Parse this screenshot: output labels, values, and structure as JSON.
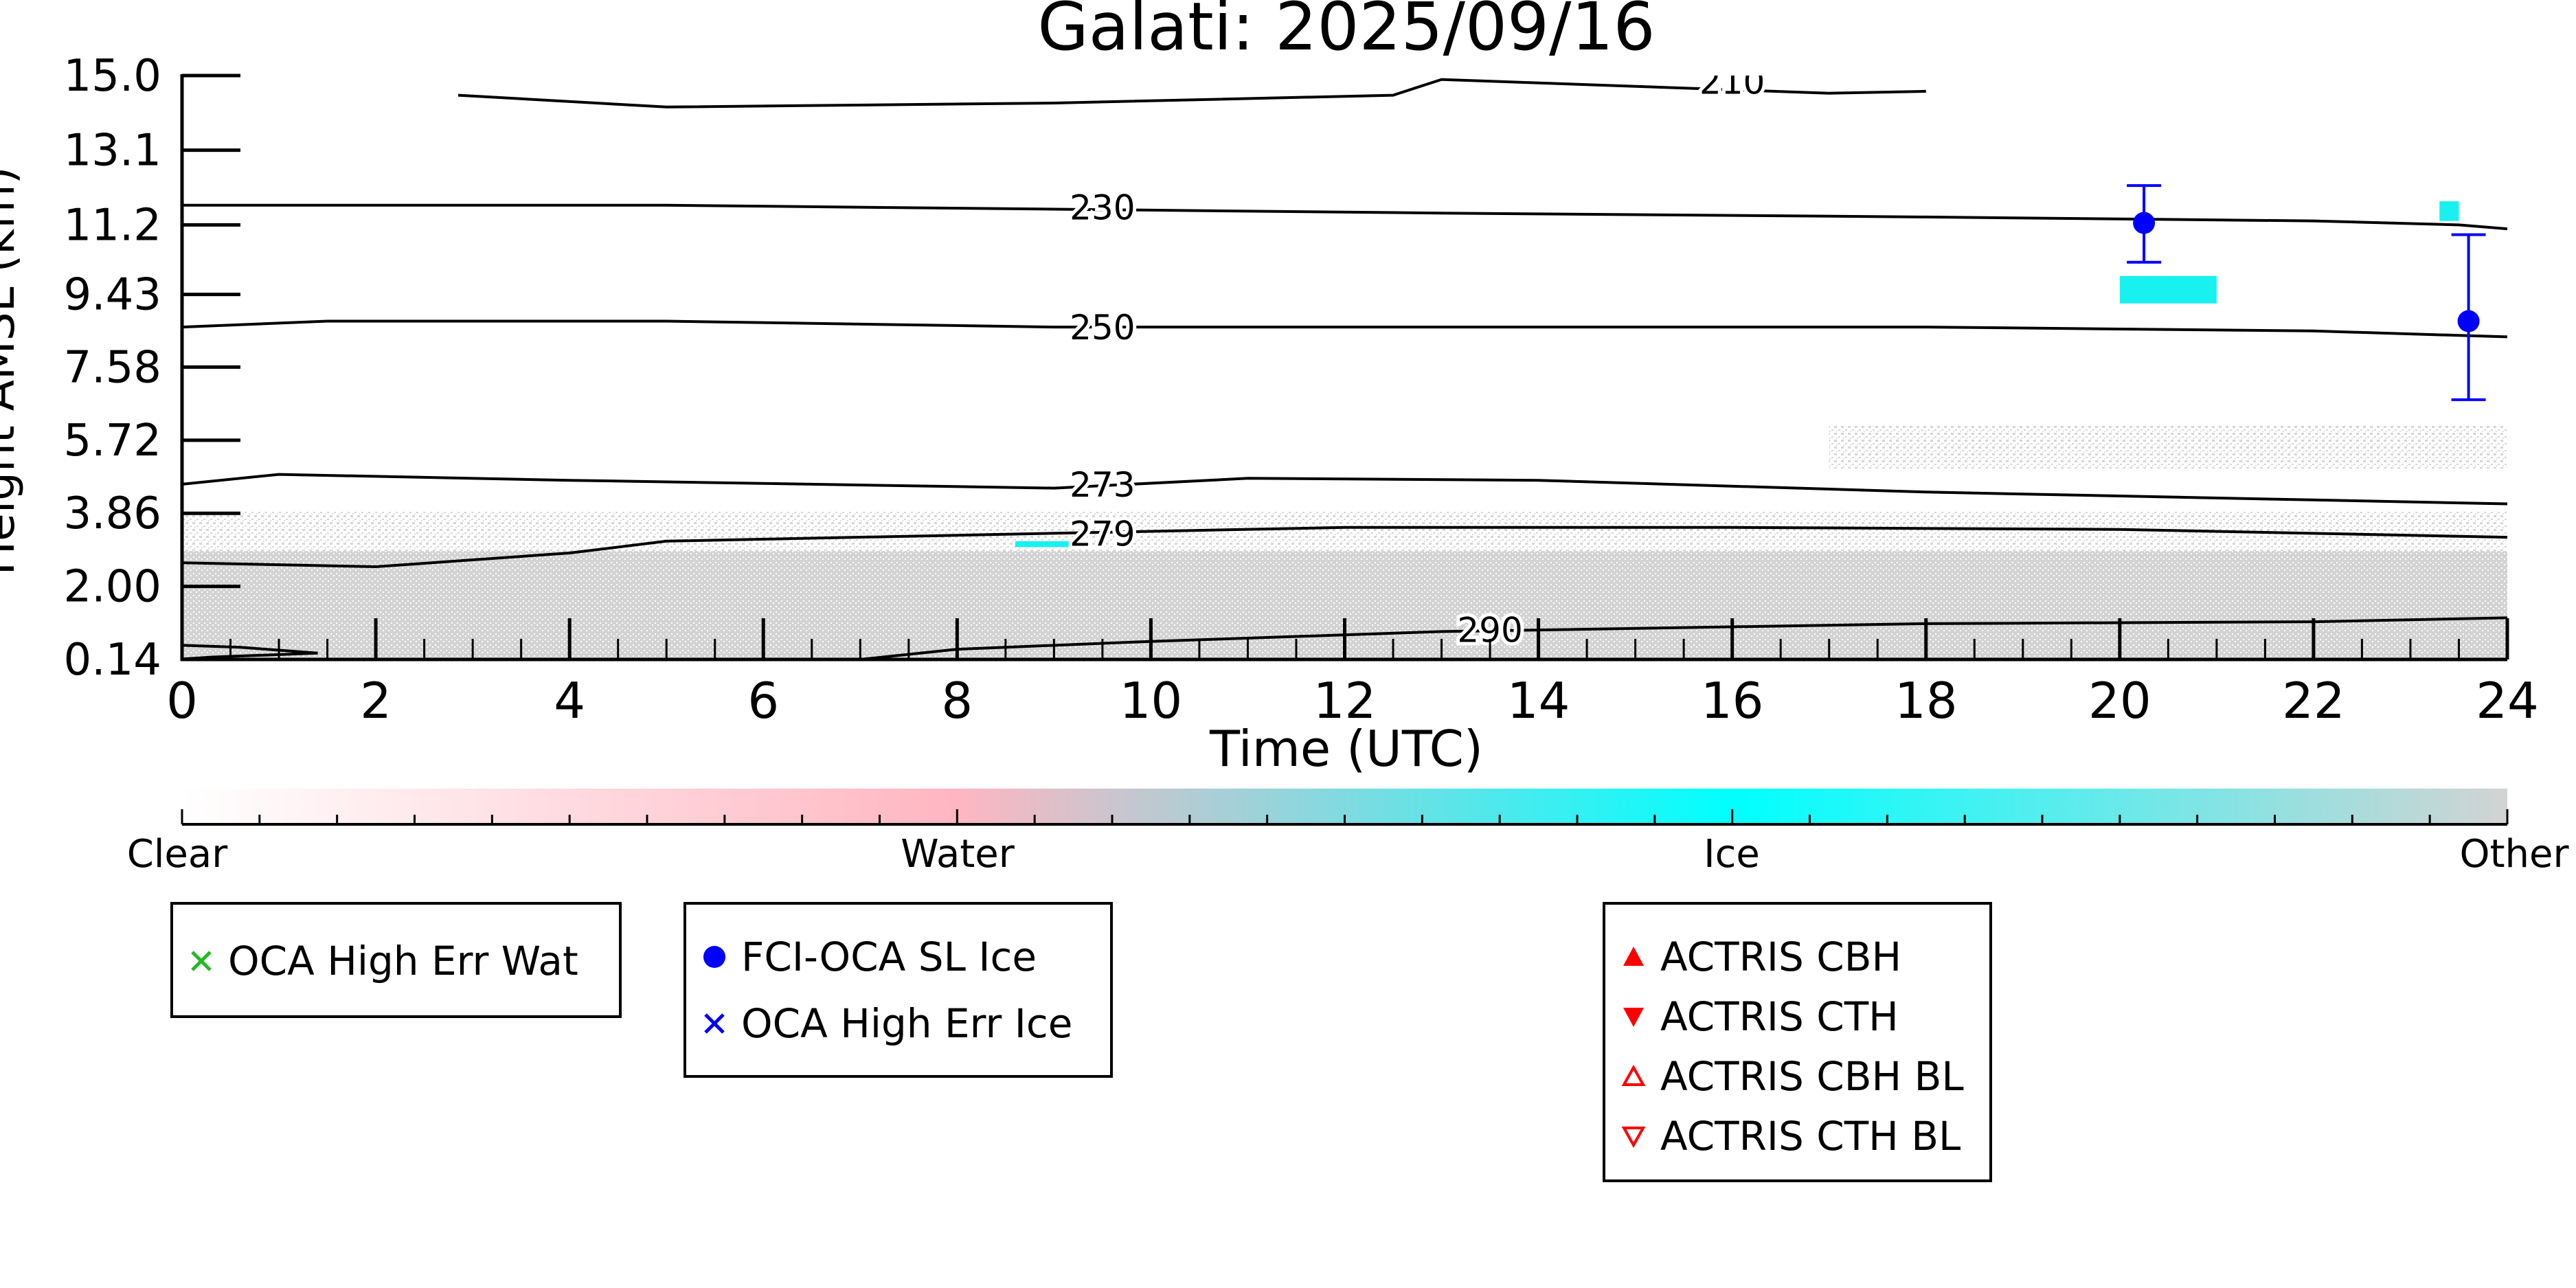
{
  "chart_data": {
    "type": "heatmap",
    "title": "Galati: 2025/09/16",
    "xlabel": "Time (UTC)",
    "ylabel": "Height AMSL (km)",
    "xlim": [
      0,
      24
    ],
    "ylim": [
      0.14,
      15.0
    ],
    "x_ticks": [
      "0",
      "2",
      "4",
      "6",
      "8",
      "10",
      "12",
      "14",
      "16",
      "18",
      "20",
      "22",
      "24"
    ],
    "y_ticks": [
      "0.14",
      "2.00",
      "3.86",
      "5.72",
      "7.58",
      "9.43",
      "11.2",
      "13.1",
      "15.0"
    ],
    "temperature_contours": [
      {
        "label": "210",
        "label_x": 16.0,
        "label_y": 14.85,
        "points": [
          [
            2.85,
            14.5
          ],
          [
            5.0,
            14.2
          ],
          [
            9.0,
            14.3
          ],
          [
            12.5,
            14.5
          ],
          [
            13.0,
            14.9
          ],
          [
            17.0,
            14.55
          ],
          [
            18.0,
            14.6
          ]
        ]
      },
      {
        "label": "230",
        "label_x": 9.5,
        "label_y": 11.65,
        "points": [
          [
            0,
            11.7
          ],
          [
            5,
            11.7
          ],
          [
            9,
            11.6
          ],
          [
            13,
            11.5
          ],
          [
            18,
            11.4
          ],
          [
            22,
            11.3
          ],
          [
            23.5,
            11.2
          ],
          [
            24,
            11.1
          ]
        ]
      },
      {
        "label": "250",
        "label_x": 9.5,
        "label_y": 8.6,
        "points": [
          [
            0,
            8.6
          ],
          [
            1.5,
            8.75
          ],
          [
            5,
            8.75
          ],
          [
            9,
            8.6
          ],
          [
            13,
            8.6
          ],
          [
            18,
            8.6
          ],
          [
            22,
            8.5
          ],
          [
            24,
            8.35
          ]
        ]
      },
      {
        "label": "273",
        "label_x": 9.5,
        "label_y": 4.6,
        "points": [
          [
            0,
            4.6
          ],
          [
            1,
            4.85
          ],
          [
            4,
            4.7
          ],
          [
            9,
            4.5
          ],
          [
            11,
            4.75
          ],
          [
            14,
            4.7
          ],
          [
            18,
            4.4
          ],
          [
            22,
            4.2
          ],
          [
            24,
            4.1
          ]
        ]
      },
      {
        "label": "279",
        "label_x": 9.5,
        "label_y": 3.35,
        "points": [
          [
            0,
            2.6
          ],
          [
            2,
            2.5
          ],
          [
            4,
            2.85
          ],
          [
            5,
            3.15
          ],
          [
            8,
            3.3
          ],
          [
            12,
            3.5
          ],
          [
            16,
            3.5
          ],
          [
            20,
            3.45
          ],
          [
            24,
            3.25
          ]
        ]
      },
      {
        "label": "290",
        "label_x": 13.5,
        "label_y": 0.9,
        "points": [
          [
            7,
            0.14
          ],
          [
            8,
            0.4
          ],
          [
            10,
            0.6
          ],
          [
            13,
            0.85
          ],
          [
            18,
            1.05
          ],
          [
            22,
            1.1
          ],
          [
            24,
            1.2
          ]
        ]
      },
      {
        "label": "",
        "label_x": 0,
        "label_y": 0,
        "points": [
          [
            0,
            0.5
          ],
          [
            0.6,
            0.45
          ],
          [
            1.4,
            0.3
          ],
          [
            0.3,
            0.2
          ],
          [
            0,
            0.15
          ]
        ]
      }
    ],
    "scatter": [
      {
        "name": "FCI-OCA SL Ice",
        "color": "#0000ff",
        "marker": "circle",
        "points": [
          {
            "x": 20.25,
            "y": 11.25,
            "yerr_low": 10.25,
            "yerr_high": 12.2
          },
          {
            "x": 23.6,
            "y": 8.75,
            "yerr_low": 6.75,
            "yerr_high": 10.95
          }
        ]
      }
    ],
    "cloud_regions": [
      {
        "phase": "Other",
        "x0": 0,
        "x1": 24,
        "y0": 0.14,
        "y1": 2.9
      },
      {
        "phase": "Other",
        "x0": 0,
        "x1": 24,
        "y0": 2.9,
        "y1": 3.9
      },
      {
        "phase": "Other",
        "x0": 17,
        "x1": 24,
        "y0": 5.0,
        "y1": 6.1
      },
      {
        "phase": "Ice",
        "x0": 8.6,
        "x1": 9.3,
        "y0": 3.0,
        "y1": 3.15
      },
      {
        "phase": "Ice",
        "x0": 20.0,
        "x1": 21.0,
        "y0": 9.2,
        "y1": 9.9
      },
      {
        "phase": "Ice",
        "x0": 23.3,
        "x1": 23.5,
        "y0": 11.3,
        "y1": 11.8
      }
    ],
    "colorbar": {
      "labels": [
        "Clear",
        "Water",
        "Ice",
        "Other"
      ],
      "stops": [
        "#ffffff",
        "#ffb6c1",
        "#00ffff",
        "#d3d3d3"
      ]
    }
  },
  "legends": {
    "water": [
      {
        "label": "OCA High Err Wat",
        "marker": "x",
        "color": "#22bb22"
      }
    ],
    "ice": [
      {
        "label": "FCI-OCA SL Ice",
        "marker": "circle",
        "color": "#0000ff"
      },
      {
        "label": "OCA High Err Ice",
        "marker": "x",
        "color": "#0000ff"
      }
    ],
    "actris": [
      {
        "label": "ACTRIS CBH",
        "marker": "triangle-up",
        "color": "#ff0000"
      },
      {
        "label": "ACTRIS CTH",
        "marker": "triangle-down",
        "color": "#ff0000"
      },
      {
        "label": "ACTRIS CBH BL",
        "marker": "triangle-up-open",
        "color": "#ff0000"
      },
      {
        "label": "ACTRIS CTH BL",
        "marker": "triangle-down-open",
        "color": "#ff0000"
      }
    ]
  }
}
